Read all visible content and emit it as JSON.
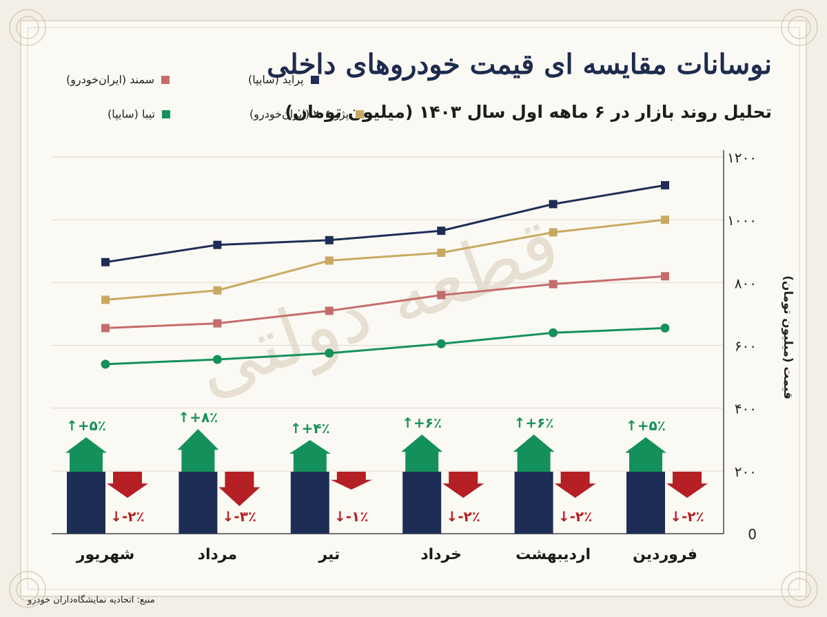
{
  "title": "نوسانات مقایسه ای قیمت خودروهای داخلی",
  "subtitle": "تحلیل روند بازار در ۶ ماهه اول سال ۱۴۰۳ (میلیون تومان)",
  "source": "منبع: اتحادیه نمایشگاه‌داران خودرو",
  "watermark": "قطعه دولتی",
  "colors": {
    "pride": "#1d2d56",
    "peugeot": "#c9a961",
    "samand": "#c46c6c",
    "tiba": "#14915a",
    "down": "#b42024",
    "up": "#14915a",
    "bar": "#1d2d56"
  },
  "chart_data": {
    "type": "line",
    "categories": [
      "فروردین",
      "اردیبهشت",
      "خرداد",
      "تیر",
      "مرداد",
      "شهریور"
    ],
    "ylabel": "قیمت (میلیون تومان)",
    "ylim": [
      0,
      1200
    ],
    "yticks": [
      "0",
      "۲۰۰",
      "۴۰۰",
      "۶۰۰",
      "۸۰۰",
      "۱۰۰۰",
      "۱۲۰۰"
    ],
    "grid": true,
    "series": [
      {
        "name": "پراید (سایپا)",
        "color": "#1d2d56",
        "values": [
          1110,
          1050,
          965,
          935,
          920,
          865
        ]
      },
      {
        "name": "پژو ۲۰۶ (ایران‌خودرو)",
        "color": "#c9a961",
        "values": [
          1000,
          960,
          895,
          870,
          775,
          745
        ]
      },
      {
        "name": "سمند (ایران‌خودرو)",
        "color": "#c46c6c",
        "values": [
          820,
          795,
          760,
          710,
          670,
          655
        ]
      },
      {
        "name": "تیبا (سایپا)",
        "color": "#14915a",
        "values": [
          655,
          640,
          605,
          575,
          555,
          540
        ]
      }
    ],
    "changes": {
      "up_labels": [
        "↑+۵٪",
        "↑+۶٪",
        "↑+۶٪",
        "↑+۴٪",
        "↑+۸٪",
        "↑+۵٪"
      ],
      "up_values": [
        5,
        6,
        6,
        4,
        8,
        5
      ],
      "down_labels": [
        "↓-۲٪",
        "↓-۲٪",
        "↓-۲٪",
        "↓-۱٪",
        "↓-۳٪",
        "↓-۲٪"
      ],
      "down_values": [
        -2,
        -2,
        -2,
        -1,
        -3,
        -2
      ]
    }
  }
}
